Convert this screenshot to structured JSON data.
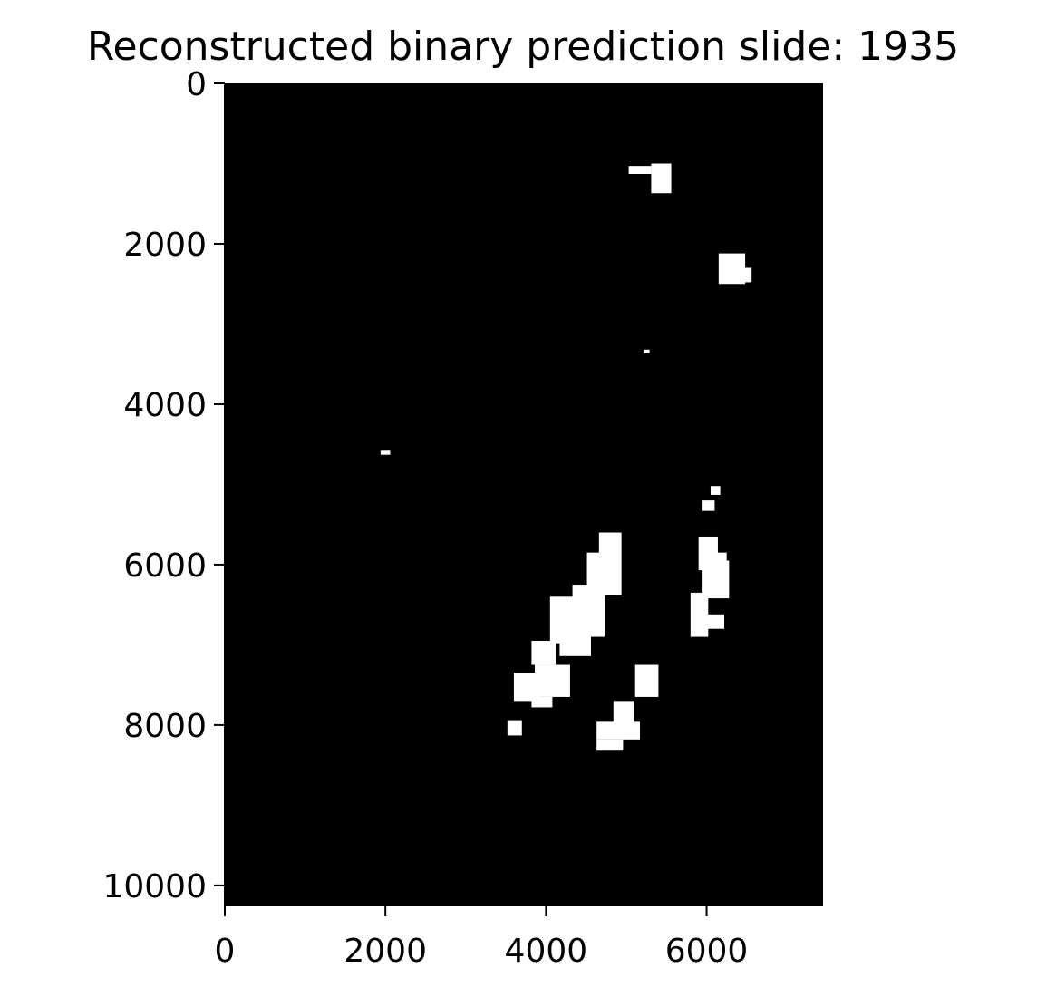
{
  "chart_data": {
    "type": "heatmap",
    "title": "Reconstructed binary prediction slide: 1935",
    "xlabel": "",
    "ylabel": "",
    "colormap": "binary (black = 0, white = 1)",
    "background_color": "#000000",
    "foreground_color": "#ffffff",
    "xlim": [
      0,
      7450
    ],
    "ylim": [
      10250,
      0
    ],
    "y_inverted": true,
    "grid": false,
    "x_ticks": [
      0,
      2000,
      4000,
      6000
    ],
    "x_tick_labels": [
      "0",
      "2000",
      "4000",
      "6000"
    ],
    "y_ticks": [
      0,
      2000,
      4000,
      6000,
      8000,
      10000
    ],
    "y_tick_labels": [
      "0",
      "2000",
      "4000",
      "6000",
      "8000",
      "10000"
    ],
    "positive_regions": [
      {
        "x0": 5030,
        "x1": 5310,
        "y0": 1030,
        "y1": 1130
      },
      {
        "x0": 5310,
        "x1": 5560,
        "y0": 1000,
        "y1": 1370
      },
      {
        "x0": 6150,
        "x1": 6480,
        "y0": 2120,
        "y1": 2500
      },
      {
        "x0": 6380,
        "x1": 6560,
        "y0": 2300,
        "y1": 2480
      },
      {
        "x0": 1940,
        "x1": 2060,
        "y0": 4580,
        "y1": 4630
      },
      {
        "x0": 6050,
        "x1": 6170,
        "y0": 5020,
        "y1": 5130
      },
      {
        "x0": 5950,
        "x1": 6100,
        "y0": 5200,
        "y1": 5330
      },
      {
        "x0": 4660,
        "x1": 4940,
        "y0": 5600,
        "y1": 6380
      },
      {
        "x0": 4510,
        "x1": 4800,
        "y0": 5850,
        "y1": 6300
      },
      {
        "x0": 4330,
        "x1": 4730,
        "y0": 6250,
        "y1": 6900
      },
      {
        "x0": 4050,
        "x1": 4450,
        "y0": 6400,
        "y1": 6980
      },
      {
        "x0": 4170,
        "x1": 4560,
        "y0": 6850,
        "y1": 7140
      },
      {
        "x0": 5900,
        "x1": 6140,
        "y0": 5650,
        "y1": 6070
      },
      {
        "x0": 6100,
        "x1": 6250,
        "y0": 5850,
        "y1": 5950
      },
      {
        "x0": 5950,
        "x1": 6280,
        "y0": 5950,
        "y1": 6420
      },
      {
        "x0": 5800,
        "x1": 6020,
        "y0": 6350,
        "y1": 6900
      },
      {
        "x0": 5970,
        "x1": 6220,
        "y0": 6620,
        "y1": 6800
      },
      {
        "x0": 3600,
        "x1": 3920,
        "y0": 7350,
        "y1": 7700
      },
      {
        "x0": 3860,
        "x1": 4300,
        "y0": 7250,
        "y1": 7650
      },
      {
        "x0": 3820,
        "x1": 4080,
        "y0": 7650,
        "y1": 7780
      },
      {
        "x0": 3820,
        "x1": 4120,
        "y0": 6950,
        "y1": 7250
      },
      {
        "x0": 5110,
        "x1": 5400,
        "y0": 7250,
        "y1": 7650
      },
      {
        "x0": 4840,
        "x1": 5100,
        "y0": 7700,
        "y1": 8050
      },
      {
        "x0": 4630,
        "x1": 5170,
        "y0": 7960,
        "y1": 8180
      },
      {
        "x0": 4630,
        "x1": 4960,
        "y0": 8180,
        "y1": 8320
      },
      {
        "x0": 3520,
        "x1": 3700,
        "y0": 7940,
        "y1": 8130
      },
      {
        "x0": 5220,
        "x1": 5290,
        "y0": 3320,
        "y1": 3360
      }
    ]
  }
}
